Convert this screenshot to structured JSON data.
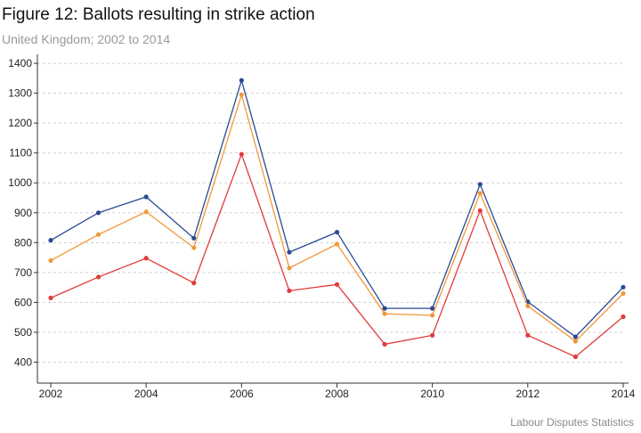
{
  "title": "Figure 12: Ballots resulting in strike action",
  "subtitle": "United Kingdom; 2002 to 2014",
  "source": "Labour Disputes Statistics",
  "chart_data": {
    "type": "line",
    "title": "Figure 12: Ballots resulting in strike action",
    "subtitle": "United Kingdom; 2002 to 2014",
    "xlabel": "",
    "ylabel": "",
    "x": [
      2002,
      2003,
      2004,
      2005,
      2006,
      2007,
      2008,
      2009,
      2010,
      2011,
      2012,
      2013,
      2014
    ],
    "x_ticks": [
      2002,
      2004,
      2006,
      2008,
      2010,
      2012,
      2014
    ],
    "y_ticks": [
      400,
      500,
      600,
      700,
      800,
      900,
      1000,
      1100,
      1200,
      1300,
      1400
    ],
    "xlim": [
      2002,
      2014
    ],
    "ylim": [
      330,
      1430
    ],
    "grid": "horizontal-dashed",
    "series": [
      {
        "color": "#2a4a94",
        "values": [
          808,
          900,
          953,
          815,
          1343,
          768,
          835,
          580,
          580,
          995,
          602,
          485,
          651
        ]
      },
      {
        "color": "#f0993a",
        "values": [
          740,
          827,
          903,
          783,
          1295,
          715,
          795,
          562,
          557,
          965,
          588,
          470,
          630
        ]
      },
      {
        "color": "#e03a3a",
        "values": [
          615,
          685,
          748,
          665,
          1096,
          639,
          660,
          460,
          490,
          907,
          490,
          418,
          552
        ]
      }
    ]
  }
}
